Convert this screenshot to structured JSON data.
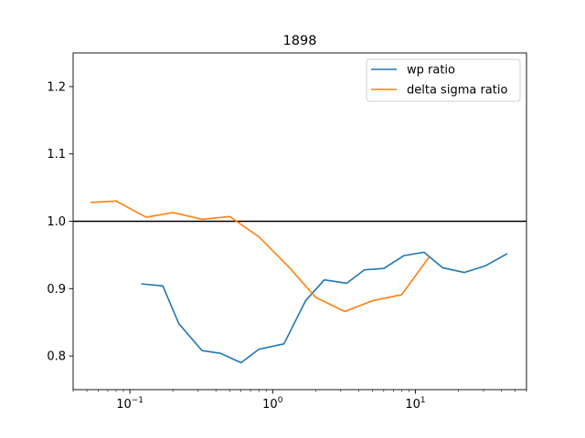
{
  "chart_data": {
    "type": "line",
    "title": "1898",
    "xlabel": "",
    "ylabel": "",
    "xscale": "log",
    "xlim": [
      0.04,
      60
    ],
    "ylim": [
      0.75,
      1.25
    ],
    "x_ticks": [
      {
        "value": 0.1,
        "base": "10",
        "exp": "−1"
      },
      {
        "value": 1,
        "base": "10",
        "exp": "0"
      },
      {
        "value": 10,
        "base": "10",
        "exp": "1"
      }
    ],
    "y_ticks": [
      {
        "value": 0.8,
        "label": "0.8"
      },
      {
        "value": 0.9,
        "label": "0.9"
      },
      {
        "value": 1.0,
        "label": "1.0"
      },
      {
        "value": 1.1,
        "label": "1.1"
      },
      {
        "value": 1.2,
        "label": "1.2"
      }
    ],
    "hline": {
      "y": 1.0,
      "color": "#000000"
    },
    "legend_position": "top-right",
    "grid": false,
    "series": [
      {
        "name": "wp ratio",
        "color": "#1f77b4",
        "x": [
          0.12,
          0.17,
          0.22,
          0.32,
          0.43,
          0.6,
          0.8,
          1.2,
          1.7,
          2.3,
          3.3,
          4.4,
          6,
          8.3,
          11.5,
          15.5,
          22,
          31,
          44
        ],
        "y": [
          0.907,
          0.904,
          0.848,
          0.808,
          0.804,
          0.79,
          0.81,
          0.818,
          0.882,
          0.913,
          0.908,
          0.928,
          0.93,
          0.949,
          0.954,
          0.931,
          0.924,
          0.934,
          0.952
        ]
      },
      {
        "name": "delta sigma ratio",
        "color": "#ff7f0e",
        "x": [
          0.053,
          0.08,
          0.13,
          0.2,
          0.32,
          0.5,
          0.8,
          1.3,
          2.0,
          3.2,
          5.0,
          8.0,
          12.5
        ],
        "y": [
          1.028,
          1.03,
          1.006,
          1.013,
          1.003,
          1.007,
          0.977,
          0.932,
          0.887,
          0.866,
          0.882,
          0.891,
          0.947
        ]
      }
    ]
  }
}
